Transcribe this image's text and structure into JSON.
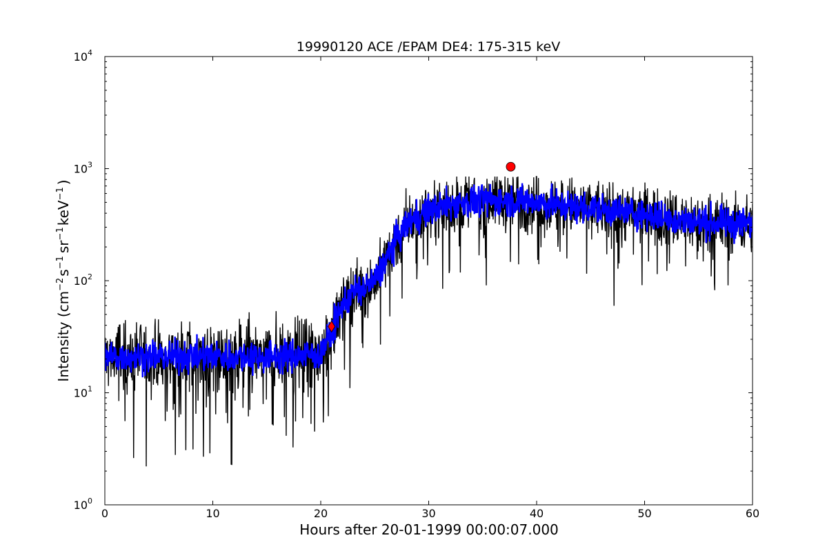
{
  "chart_data": {
    "type": "line",
    "title": "19990120 ACE /EPAM DE4: 175-315 keV",
    "xlabel": "Hours after 20-01-1999 00:00:07.000",
    "ylabel_parts": {
      "start": "Intensity (cm",
      "exp1": "−2",
      "mid1": "s",
      "exp2": "−1",
      "mid2": "sr",
      "exp3": "−1",
      "mid3": "keV",
      "exp4": "−1",
      "end": ")"
    },
    "xlim": [
      0,
      60
    ],
    "ylim": [
      1,
      10000
    ],
    "yscale": "log",
    "grid": false,
    "x_ticks": [
      {
        "value": 0,
        "label": "0"
      },
      {
        "value": 10,
        "label": "10"
      },
      {
        "value": 20,
        "label": "20"
      },
      {
        "value": 30,
        "label": "30"
      },
      {
        "value": 40,
        "label": "40"
      },
      {
        "value": 50,
        "label": "50"
      },
      {
        "value": 60,
        "label": "60"
      }
    ],
    "y_ticks": [
      {
        "value": 1,
        "base": "10",
        "exp": "0"
      },
      {
        "value": 10,
        "base": "10",
        "exp": "1"
      },
      {
        "value": 100,
        "base": "10",
        "exp": "2"
      },
      {
        "value": 1000,
        "base": "10",
        "exp": "3"
      },
      {
        "value": 10000,
        "base": "10",
        "exp": "4"
      }
    ],
    "series": [
      {
        "role": "raw intensity",
        "color": "#000000",
        "profile_x": [
          0,
          5,
          10,
          15,
          20,
          21,
          22,
          23,
          24,
          25,
          26,
          27,
          28,
          29,
          30,
          32,
          34,
          36,
          38,
          40,
          42,
          44,
          46,
          48,
          50,
          52,
          54,
          56,
          58,
          60
        ],
        "profile_y": [
          21,
          21,
          21,
          21,
          22,
          35,
          60,
          80,
          85,
          100,
          150,
          230,
          320,
          380,
          420,
          480,
          510,
          520,
          520,
          500,
          470,
          450,
          430,
          410,
          390,
          360,
          340,
          330,
          320,
          320
        ],
        "min_value": 2.2,
        "max_value": 850
      },
      {
        "role": "smoothed intensity",
        "color": "#0000ff",
        "profile_x": [
          0,
          5,
          10,
          15,
          20,
          21,
          22,
          23,
          24,
          25,
          26,
          27,
          28,
          29,
          30,
          32,
          34,
          36,
          38,
          40,
          42,
          44,
          46,
          48,
          50,
          52,
          54,
          56,
          58,
          60
        ],
        "profile_y": [
          21,
          21,
          21,
          21,
          22,
          35,
          60,
          80,
          85,
          100,
          150,
          230,
          320,
          380,
          420,
          480,
          510,
          520,
          520,
          500,
          470,
          450,
          430,
          410,
          390,
          360,
          340,
          330,
          320,
          320
        ]
      }
    ],
    "markers": [
      {
        "shape": "diamond",
        "x": 21.0,
        "y": 39,
        "color": "#ff0000"
      },
      {
        "shape": "circle",
        "x": 37.6,
        "y": 1040,
        "color": "#ff0000"
      }
    ]
  }
}
